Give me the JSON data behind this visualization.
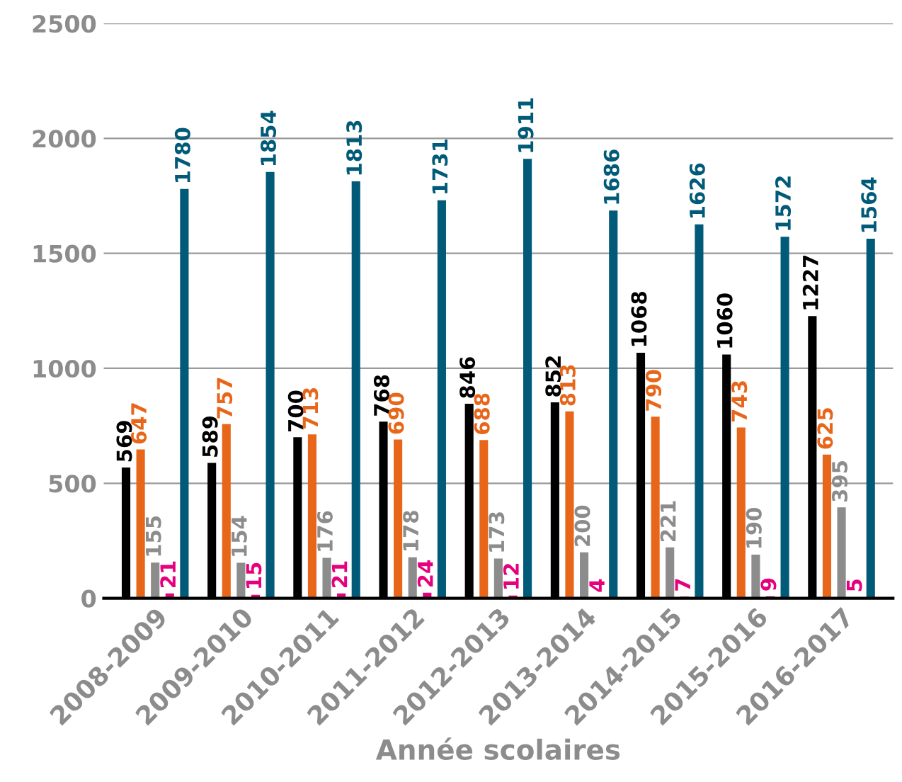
{
  "chart_data": {
    "type": "bar",
    "xlabel": "Année scolaires",
    "categories": [
      "2008-2009",
      "2009-2010",
      "2010-2011",
      "2011-2012",
      "2012-2013",
      "2013-2014",
      "2014-2015",
      "2015-2016",
      "2016-2017"
    ],
    "series": [
      {
        "color": "#000000",
        "values": [
          569,
          589,
          700,
          768,
          846,
          852,
          1068,
          1060,
          1227
        ]
      },
      {
        "color": "#e8661a",
        "values": [
          647,
          757,
          713,
          690,
          688,
          813,
          790,
          743,
          625
        ]
      },
      {
        "color": "#8c8c8c",
        "values": [
          155,
          154,
          176,
          178,
          173,
          200,
          221,
          190,
          395
        ]
      },
      {
        "color": "#e5007e",
        "values": [
          21,
          15,
          21,
          24,
          12,
          4,
          7,
          9,
          5
        ]
      },
      {
        "color": "#005a78",
        "values": [
          1780,
          1854,
          1813,
          1731,
          1911,
          1686,
          1626,
          1572,
          1564
        ]
      }
    ],
    "ylim": [
      0,
      2500
    ],
    "yticks": [
      0,
      500,
      1000,
      1500,
      2000,
      2500
    ],
    "grid": "y",
    "data_labels": true,
    "legend": false
  }
}
